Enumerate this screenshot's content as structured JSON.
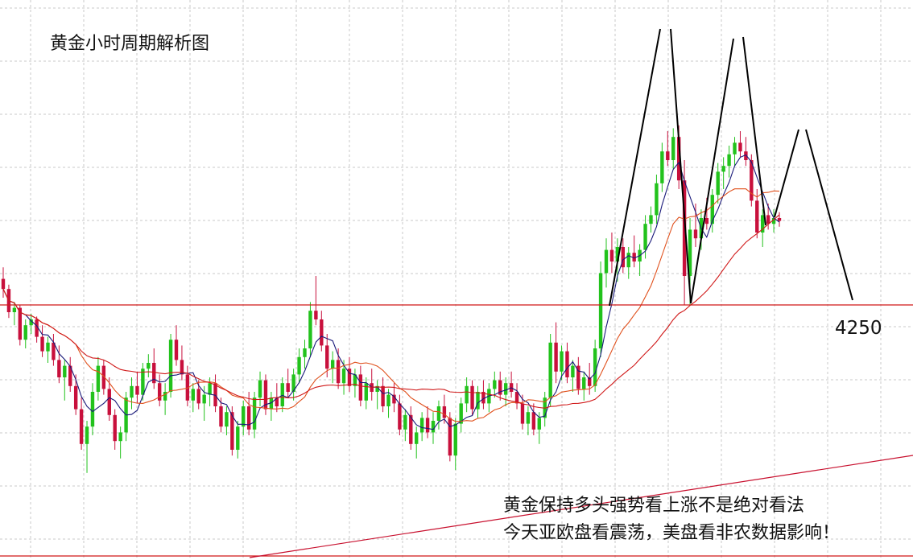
{
  "title": "黄金小时周期解析图",
  "price_label": "4250",
  "annotations": [
    "黄金保持多头强势看上涨不是绝对看法",
    "今天亚欧盘看震荡，美盘看非农数据影响！"
  ],
  "colors": {
    "bull": "#22c21c",
    "bear": "#c8103c",
    "ma_fast": "#1a1a7a",
    "ma_mid": "#e0501c",
    "ma_slow": "#d01818",
    "level": "#d01818",
    "trendline": "#c8102e",
    "pattern": "#000000",
    "grid": "#c8c8c8"
  },
  "chart_data": {
    "type": "candlestick",
    "title": "黄金小时周期解析图",
    "level_label": "4250",
    "candles": [
      [
        4268,
        4276,
        4255,
        4261
      ],
      [
        4261,
        4264,
        4241,
        4245
      ],
      [
        4245,
        4252,
        4236,
        4248
      ],
      [
        4248,
        4250,
        4222,
        4226
      ],
      [
        4226,
        4240,
        4220,
        4236
      ],
      [
        4236,
        4244,
        4230,
        4240
      ],
      [
        4240,
        4242,
        4224,
        4228
      ],
      [
        4228,
        4236,
        4214,
        4218
      ],
      [
        4218,
        4228,
        4210,
        4224
      ],
      [
        4224,
        4230,
        4208,
        4212
      ],
      [
        4212,
        4222,
        4196,
        4200
      ],
      [
        4200,
        4212,
        4184,
        4208
      ],
      [
        4208,
        4214,
        4190,
        4194
      ],
      [
        4194,
        4202,
        4174,
        4178
      ],
      [
        4178,
        4186,
        4150,
        4154
      ],
      [
        4154,
        4170,
        4134,
        4166
      ],
      [
        4166,
        4196,
        4160,
        4190
      ],
      [
        4190,
        4214,
        4184,
        4208
      ],
      [
        4208,
        4212,
        4188,
        4192
      ],
      [
        4192,
        4200,
        4170,
        4174
      ],
      [
        4174,
        4178,
        4150,
        4156
      ],
      [
        4156,
        4166,
        4144,
        4162
      ],
      [
        4162,
        4190,
        4156,
        4186
      ],
      [
        4186,
        4200,
        4178,
        4194
      ],
      [
        4194,
        4204,
        4182,
        4188
      ],
      [
        4188,
        4210,
        4184,
        4206
      ],
      [
        4206,
        4216,
        4200,
        4210
      ],
      [
        4210,
        4220,
        4192,
        4196
      ],
      [
        4196,
        4202,
        4180,
        4184
      ],
      [
        4184,
        4196,
        4174,
        4190
      ],
      [
        4190,
        4230,
        4186,
        4226
      ],
      [
        4226,
        4236,
        4208,
        4212
      ],
      [
        4212,
        4222,
        4198,
        4202
      ],
      [
        4202,
        4208,
        4180,
        4184
      ],
      [
        4184,
        4196,
        4176,
        4192
      ],
      [
        4192,
        4198,
        4178,
        4182
      ],
      [
        4182,
        4194,
        4170,
        4188
      ],
      [
        4188,
        4200,
        4180,
        4196
      ],
      [
        4196,
        4202,
        4176,
        4180
      ],
      [
        4180,
        4186,
        4162,
        4166
      ],
      [
        4166,
        4180,
        4160,
        4176
      ],
      [
        4176,
        4180,
        4146,
        4150
      ],
      [
        4150,
        4170,
        4144,
        4166
      ],
      [
        4166,
        4184,
        4160,
        4180
      ],
      [
        4180,
        4190,
        4160,
        4164
      ],
      [
        4164,
        4190,
        4158,
        4186
      ],
      [
        4186,
        4204,
        4180,
        4198
      ],
      [
        4198,
        4202,
        4174,
        4178
      ],
      [
        4178,
        4190,
        4170,
        4186
      ],
      [
        4186,
        4196,
        4176,
        4180
      ],
      [
        4180,
        4200,
        4176,
        4196
      ],
      [
        4196,
        4206,
        4186,
        4190
      ],
      [
        4190,
        4206,
        4184,
        4202
      ],
      [
        4202,
        4220,
        4196,
        4214
      ],
      [
        4214,
        4226,
        4206,
        4220
      ],
      [
        4220,
        4252,
        4214,
        4246
      ],
      [
        4246,
        4270,
        4236,
        4240
      ],
      [
        4240,
        4246,
        4218,
        4222
      ],
      [
        4222,
        4230,
        4200,
        4206
      ],
      [
        4206,
        4218,
        4196,
        4212
      ],
      [
        4212,
        4220,
        4192,
        4196
      ],
      [
        4196,
        4212,
        4188,
        4206
      ],
      [
        4206,
        4214,
        4190,
        4194
      ],
      [
        4194,
        4206,
        4186,
        4202
      ],
      [
        4202,
        4208,
        4180,
        4184
      ],
      [
        4184,
        4200,
        4178,
        4196
      ],
      [
        4196,
        4206,
        4184,
        4190
      ],
      [
        4190,
        4198,
        4178,
        4194
      ],
      [
        4194,
        4200,
        4176,
        4180
      ],
      [
        4180,
        4192,
        4172,
        4188
      ],
      [
        4188,
        4196,
        4176,
        4182
      ],
      [
        4182,
        4188,
        4160,
        4164
      ],
      [
        4164,
        4178,
        4156,
        4174
      ],
      [
        4174,
        4180,
        4150,
        4154
      ],
      [
        4154,
        4166,
        4144,
        4162
      ],
      [
        4162,
        4176,
        4156,
        4172
      ],
      [
        4172,
        4180,
        4158,
        4162
      ],
      [
        4162,
        4176,
        4154,
        4170
      ],
      [
        4170,
        4184,
        4164,
        4180
      ],
      [
        4180,
        4188,
        4168,
        4172
      ],
      [
        4172,
        4176,
        4142,
        4146
      ],
      [
        4146,
        4172,
        4136,
        4168
      ],
      [
        4168,
        4186,
        4162,
        4182
      ],
      [
        4182,
        4200,
        4176,
        4194
      ],
      [
        4194,
        4198,
        4174,
        4178
      ],
      [
        4178,
        4194,
        4172,
        4190
      ],
      [
        4190,
        4198,
        4178,
        4182
      ],
      [
        4182,
        4196,
        4176,
        4192
      ],
      [
        4192,
        4204,
        4186,
        4198
      ],
      [
        4198,
        4204,
        4184,
        4188
      ],
      [
        4188,
        4200,
        4180,
        4196
      ],
      [
        4196,
        4204,
        4186,
        4190
      ],
      [
        4190,
        4196,
        4178,
        4182
      ],
      [
        4182,
        4188,
        4164,
        4168
      ],
      [
        4168,
        4180,
        4160,
        4176
      ],
      [
        4176,
        4182,
        4160,
        4164
      ],
      [
        4164,
        4176,
        4154,
        4172
      ],
      [
        4172,
        4190,
        4166,
        4186
      ],
      [
        4186,
        4230,
        4180,
        4224
      ],
      [
        4224,
        4238,
        4196,
        4204
      ],
      [
        4204,
        4222,
        4198,
        4218
      ],
      [
        4218,
        4224,
        4196,
        4200
      ],
      [
        4200,
        4212,
        4190,
        4208
      ],
      [
        4208,
        4214,
        4188,
        4192
      ],
      [
        4192,
        4204,
        4184,
        4200
      ],
      [
        4200,
        4210,
        4188,
        4194
      ],
      [
        4194,
        4226,
        4190,
        4220
      ],
      [
        4220,
        4280,
        4214,
        4272
      ],
      [
        4272,
        4296,
        4262,
        4288
      ],
      [
        4288,
        4300,
        4272,
        4280
      ],
      [
        4280,
        4296,
        4266,
        4290
      ],
      [
        4290,
        4296,
        4272,
        4276
      ],
      [
        4276,
        4290,
        4268,
        4286
      ],
      [
        4286,
        4298,
        4276,
        4280
      ],
      [
        4280,
        4292,
        4270,
        4288
      ],
      [
        4288,
        4312,
        4282,
        4306
      ],
      [
        4306,
        4318,
        4300,
        4312
      ],
      [
        4312,
        4340,
        4306,
        4334
      ],
      [
        4334,
        4362,
        4328,
        4356
      ],
      [
        4356,
        4370,
        4346,
        4350
      ],
      [
        4350,
        4372,
        4344,
        4366
      ],
      [
        4366,
        4374,
        4330,
        4336
      ],
      [
        4336,
        4350,
        4250,
        4270
      ],
      [
        4270,
        4310,
        4250,
        4302
      ],
      [
        4302,
        4320,
        4290,
        4296
      ],
      [
        4296,
        4316,
        4288,
        4310
      ],
      [
        4310,
        4324,
        4302,
        4306
      ],
      [
        4306,
        4330,
        4300,
        4326
      ],
      [
        4326,
        4348,
        4320,
        4342
      ],
      [
        4342,
        4352,
        4330,
        4346
      ],
      [
        4346,
        4360,
        4338,
        4354
      ],
      [
        4354,
        4366,
        4346,
        4362
      ],
      [
        4362,
        4370,
        4352,
        4356
      ],
      [
        4356,
        4366,
        4346,
        4350
      ],
      [
        4350,
        4354,
        4318,
        4322
      ],
      [
        4322,
        4330,
        4296,
        4300
      ],
      [
        4300,
        4316,
        4290,
        4312
      ],
      [
        4312,
        4320,
        4302,
        4306
      ],
      [
        4306,
        4316,
        4300,
        4310
      ],
      [
        4310,
        4314,
        4304,
        4308
      ]
    ],
    "moving_averages": [
      "ma-fast",
      "ma-mid",
      "ma-slow"
    ],
    "reference_level": 4250,
    "projection_target": 4250
  }
}
